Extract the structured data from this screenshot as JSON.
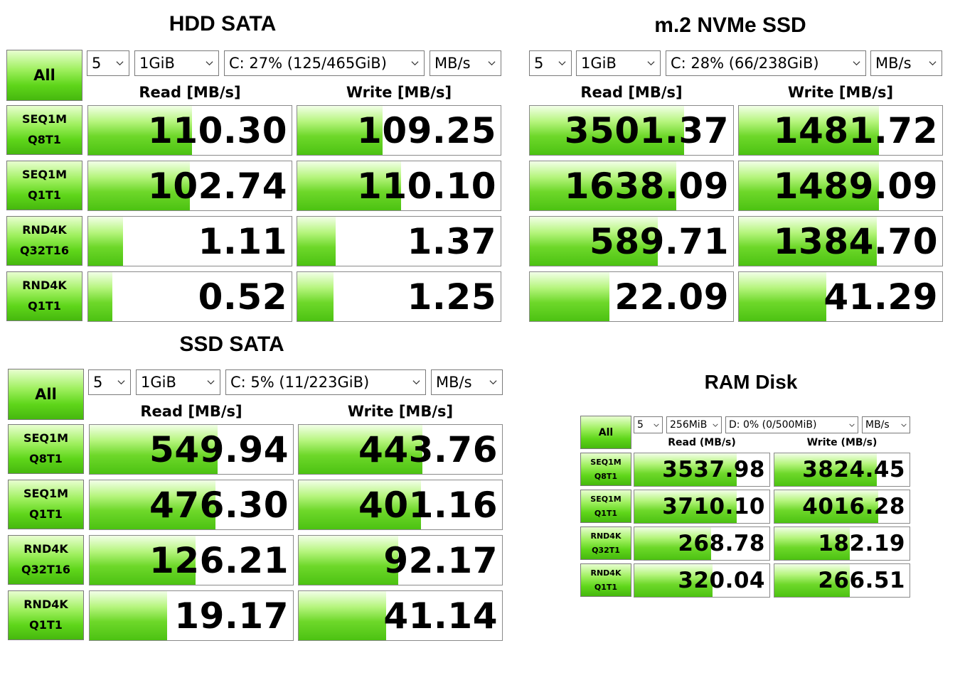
{
  "panels": [
    {
      "id": "hdd",
      "title": "HDD SATA",
      "all_label": "All",
      "count": "5",
      "size": "1GiB",
      "drive": "C: 27% (125/465GiB)",
      "unit": "MB/s",
      "read_header": "Read [MB/s]",
      "write_header": "Write [MB/s]",
      "tests": [
        {
          "line1": "SEQ1M",
          "line2": "Q8T1",
          "read": "110.30",
          "read_fill": 0.51,
          "write": "109.25",
          "write_fill": 0.42
        },
        {
          "line1": "SEQ1M",
          "line2": "Q1T1",
          "read": "102.74",
          "read_fill": 0.5,
          "write": "110.10",
          "write_fill": 0.51
        },
        {
          "line1": "RND4K",
          "line2": "Q32T16",
          "read": "1.11",
          "read_fill": 0.17,
          "write": "1.37",
          "write_fill": 0.19
        },
        {
          "line1": "RND4K",
          "line2": "Q1T1",
          "read": "0.52",
          "read_fill": 0.12,
          "write": "1.25",
          "write_fill": 0.18
        }
      ]
    },
    {
      "id": "nvme",
      "title": "m.2 NVMe SSD",
      "all_label": "",
      "count": "5",
      "size": "1GiB",
      "drive": "C: 28% (66/238GiB)",
      "unit": "MB/s",
      "read_header": "Read [MB/s]",
      "write_header": "Write [MB/s]",
      "tests": [
        {
          "line1": "",
          "line2": "",
          "read": "3501.37",
          "read_fill": 0.76,
          "write": "1481.72",
          "write_fill": 0.69
        },
        {
          "line1": "",
          "line2": "",
          "read": "1638.09",
          "read_fill": 0.72,
          "write": "1489.09",
          "write_fill": 0.69
        },
        {
          "line1": "",
          "line2": "",
          "read": "589.71",
          "read_fill": 0.63,
          "write": "1384.70",
          "write_fill": 0.68
        },
        {
          "line1": "",
          "line2": "",
          "read": "22.09",
          "read_fill": 0.39,
          "write": "41.29",
          "write_fill": 0.43
        }
      ]
    },
    {
      "id": "ssd",
      "title": "SSD SATA",
      "all_label": "All",
      "count": "5",
      "size": "1GiB",
      "drive": "C: 5% (11/223GiB)",
      "unit": "MB/s",
      "read_header": "Read [MB/s]",
      "write_header": "Write [MB/s]",
      "tests": [
        {
          "line1": "SEQ1M",
          "line2": "Q8T1",
          "read": "549.94",
          "read_fill": 0.63,
          "write": "443.76",
          "write_fill": 0.61
        },
        {
          "line1": "SEQ1M",
          "line2": "Q1T1",
          "read": "476.30",
          "read_fill": 0.62,
          "write": "401.16",
          "write_fill": 0.6
        },
        {
          "line1": "RND4K",
          "line2": "Q32T16",
          "read": "126.21",
          "read_fill": 0.52,
          "write": "92.17",
          "write_fill": 0.49
        },
        {
          "line1": "RND4K",
          "line2": "Q1T1",
          "read": "19.17",
          "read_fill": 0.38,
          "write": "41.14",
          "write_fill": 0.43
        }
      ]
    },
    {
      "id": "ram",
      "title": "RAM Disk",
      "all_label": "All",
      "count": "5",
      "size": "256MiB",
      "drive": "D: 0% (0/500MiB)",
      "unit": "MB/s",
      "read_header": "Read (MB/s)",
      "write_header": "Write (MB/s)",
      "tests": [
        {
          "line1": "SEQ1M",
          "line2": "Q8T1",
          "read": "3537.98",
          "read_fill": 0.76,
          "write": "3824.45",
          "write_fill": 0.76
        },
        {
          "line1": "SEQ1M",
          "line2": "Q1T1",
          "read": "3710.10",
          "read_fill": 0.76,
          "write": "4016.28",
          "write_fill": 0.77
        },
        {
          "line1": "RND4K",
          "line2": "Q32T1",
          "read": "268.78",
          "read_fill": 0.57,
          "write": "182.19",
          "write_fill": 0.56
        },
        {
          "line1": "RND4K",
          "line2": "Q1T1",
          "read": "320.04",
          "read_fill": 0.58,
          "write": "266.51",
          "write_fill": 0.56
        }
      ]
    }
  ]
}
